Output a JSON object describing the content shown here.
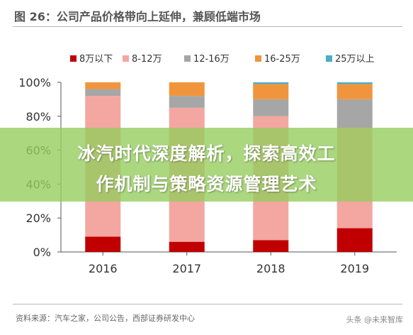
{
  "figure": {
    "title": "图 26：公司产品价格带向上延伸，兼顾低端市场",
    "source": "资料来源：汽车之家，公司公告，西部证券研发中心",
    "watermark": "头条 @未来智库"
  },
  "overlay": {
    "line1": "冰汽时代深度解析，探索高效工",
    "line2": "作机制与策略资源管理艺术"
  },
  "chart_data": {
    "type": "bar",
    "stacked": true,
    "categories": [
      "2016",
      "2017",
      "2018",
      "2019"
    ],
    "series": [
      {
        "name": "8万以下",
        "color": "#c00000",
        "values": [
          9,
          6,
          7,
          14
        ]
      },
      {
        "name": "8-12万",
        "color": "#f4a6a1",
        "values": [
          83,
          79,
          73,
          59
        ]
      },
      {
        "name": "12-16万",
        "color": "#a6a6a6",
        "values": [
          4,
          7,
          10,
          17
        ]
      },
      {
        "name": "16-25万",
        "color": "#f0953d",
        "values": [
          4,
          8,
          9,
          9
        ]
      },
      {
        "name": "25万以上",
        "color": "#4bacc6",
        "values": [
          0,
          0,
          1,
          1
        ]
      }
    ],
    "yticks": [
      "0%",
      "20%",
      "40%",
      "60%",
      "80%",
      "100%"
    ],
    "ylim": [
      0,
      100
    ],
    "legend_position": "top",
    "grid": false,
    "title": "",
    "xlabel": "",
    "ylabel": ""
  }
}
